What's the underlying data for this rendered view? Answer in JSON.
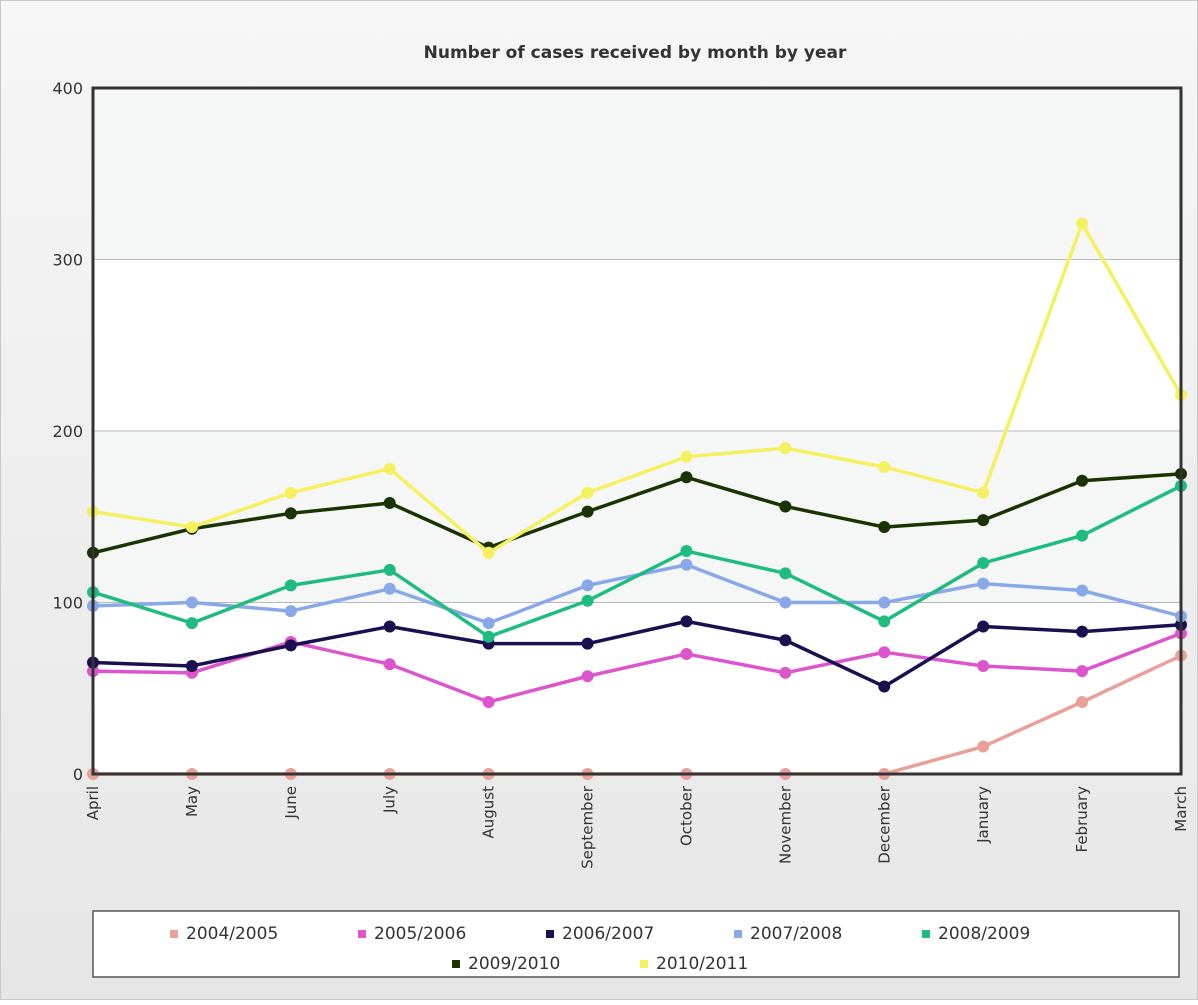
{
  "chart_data": {
    "type": "line",
    "title": "Number of cases received by month by year",
    "xlabel": "",
    "ylabel": "",
    "categories": [
      "April",
      "May",
      "June",
      "July",
      "August",
      "September",
      "October",
      "November",
      "December",
      "January",
      "February",
      "March"
    ],
    "ylim": [
      0,
      400
    ],
    "yticks": [
      0,
      100,
      200,
      300,
      400
    ],
    "grid": true,
    "legend_position": "bottom",
    "series": [
      {
        "name": "2004/2005",
        "color": "#e8a098",
        "values": [
          0,
          0,
          0,
          0,
          0,
          0,
          0,
          0,
          0,
          16,
          42,
          69
        ]
      },
      {
        "name": "2005/2006",
        "color": "#dd55cc",
        "values": [
          60,
          59,
          77,
          64,
          42,
          57,
          70,
          59,
          71,
          63,
          60,
          82
        ]
      },
      {
        "name": "2006/2007",
        "color": "#1a1050",
        "values": [
          65,
          63,
          75,
          86,
          76,
          76,
          89,
          78,
          51,
          86,
          83,
          87
        ]
      },
      {
        "name": "2007/2008",
        "color": "#88a8e8",
        "values": [
          98,
          100,
          95,
          108,
          88,
          110,
          122,
          100,
          100,
          111,
          107,
          92
        ]
      },
      {
        "name": "2008/2009",
        "color": "#20bb80",
        "values": [
          106,
          88,
          110,
          119,
          80,
          101,
          130,
          117,
          89,
          123,
          139,
          168
        ]
      },
      {
        "name": "2009/2010",
        "color": "#1a3300",
        "values": [
          129,
          143,
          152,
          158,
          132,
          153,
          173,
          156,
          144,
          148,
          171,
          175
        ]
      },
      {
        "name": "2010/2011",
        "color": "#f5f060",
        "values": [
          153,
          144,
          164,
          178,
          129,
          164,
          185,
          190,
          179,
          164,
          321,
          221
        ]
      }
    ]
  }
}
